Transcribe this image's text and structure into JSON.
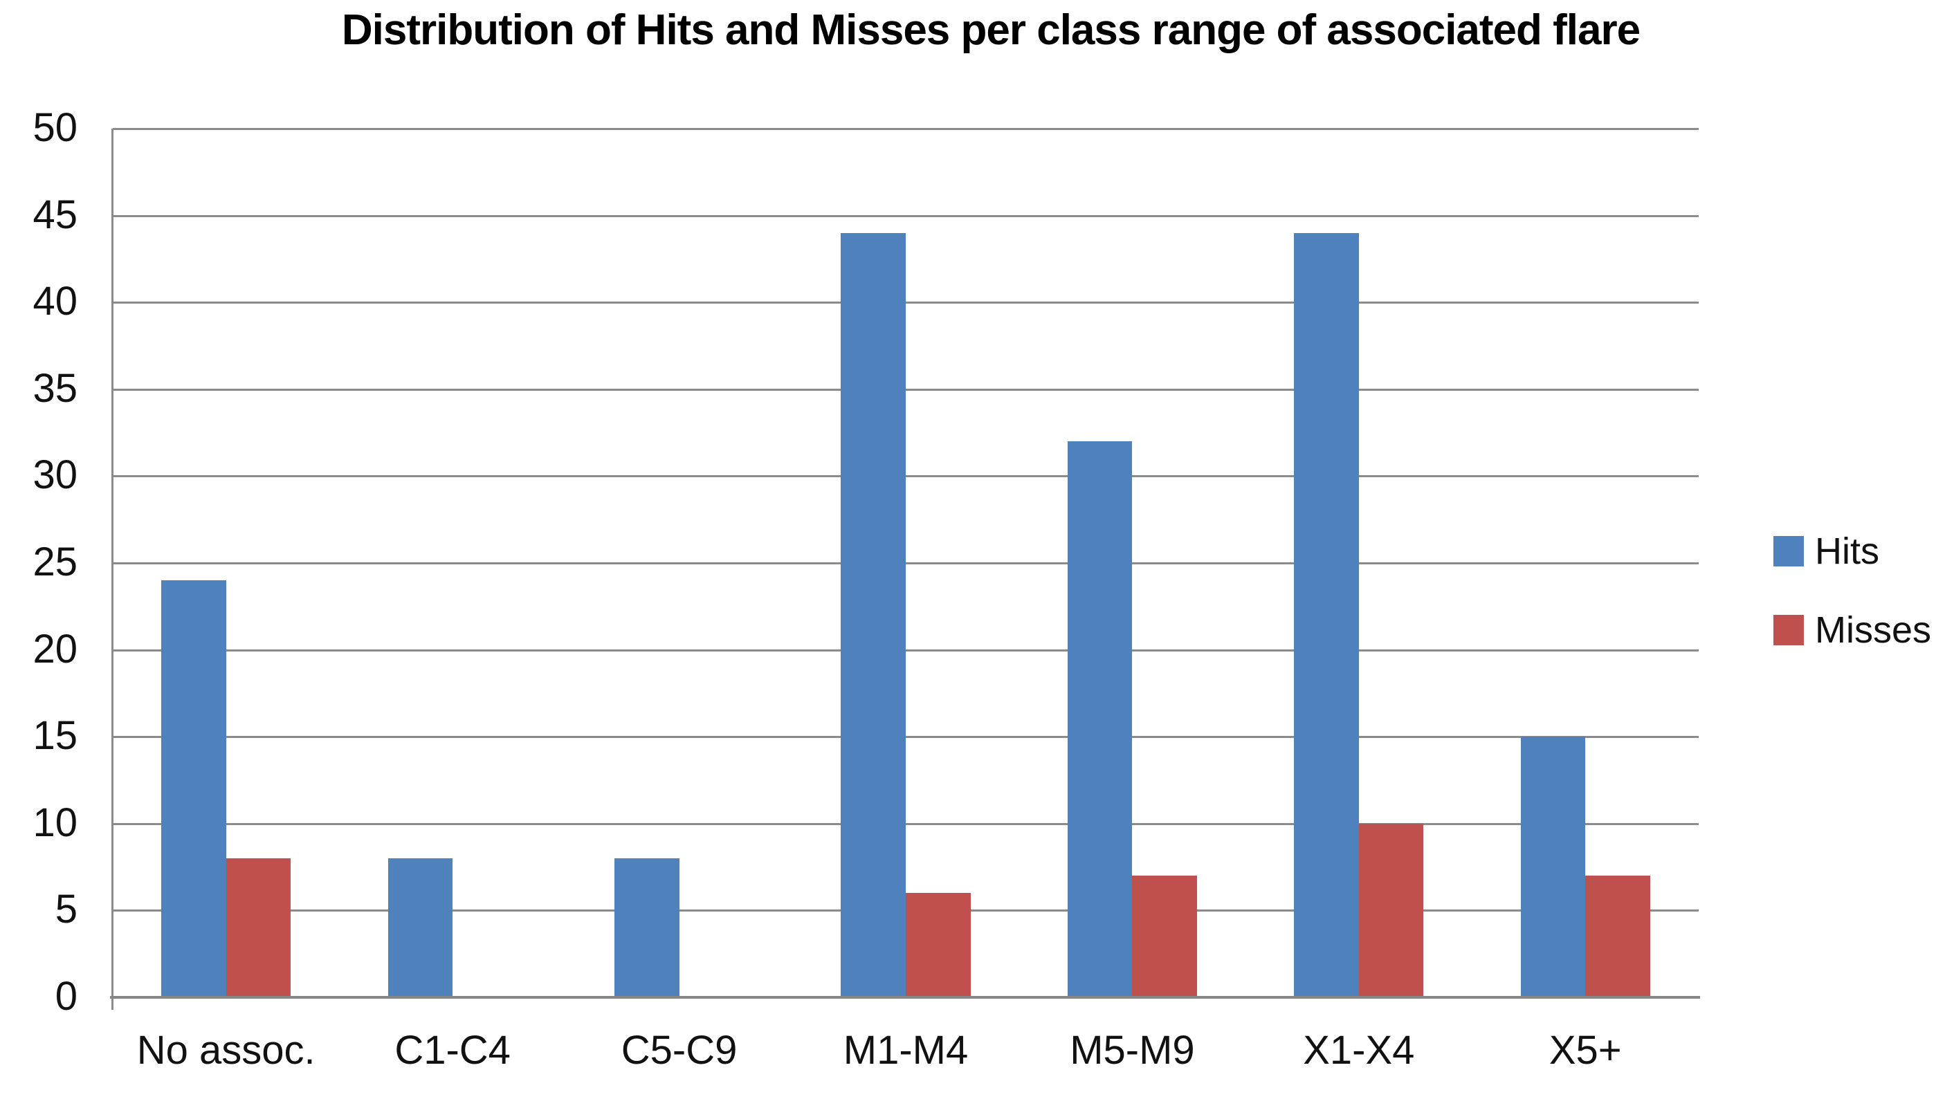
{
  "title": "Distribution of Hits and Misses per class range of associated flare",
  "legend": {
    "items": [
      {
        "label": "Hits",
        "color": "#4F81BD"
      },
      {
        "label": "Misses",
        "color": "#C0504D"
      }
    ]
  },
  "y_axis": {
    "tick_labels": [
      "0",
      "5",
      "10",
      "15",
      "20",
      "25",
      "30",
      "35",
      "40",
      "45",
      "50"
    ]
  },
  "chart_data": {
    "type": "bar",
    "title": "Distribution of Hits and Misses per class range of associated flare",
    "categories": [
      "No assoc.",
      "C1-C4",
      "C5-C9",
      "M1-M4",
      "M5-M9",
      "X1-X4",
      "X5+"
    ],
    "series": [
      {
        "name": "Hits",
        "color": "#4F81BD",
        "values": [
          24,
          8,
          8,
          44,
          32,
          44,
          15
        ]
      },
      {
        "name": "Misses",
        "color": "#C0504D",
        "values": [
          8,
          0,
          0,
          6,
          7,
          10,
          7
        ]
      }
    ],
    "xlabel": "",
    "ylabel": "",
    "ylim": [
      0,
      50
    ],
    "ytick_step": 5,
    "grid": true,
    "gridline_color": "#8B8B8B",
    "axis_color": "#868686",
    "legend_position": "right"
  }
}
